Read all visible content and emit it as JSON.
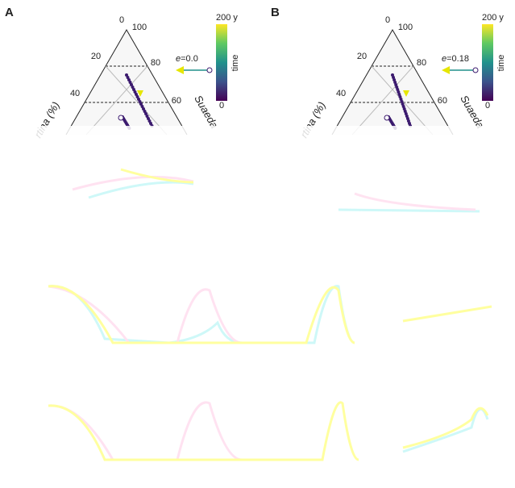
{
  "panels": [
    {
      "label": "A",
      "top_ticks": [
        "0",
        "100"
      ],
      "left_ticks": [
        "20",
        "40"
      ],
      "right_ticks": [
        "80",
        "60"
      ],
      "left_axis": "rtina (%)",
      "right_axis": "Suaeda",
      "e_symbol": "e",
      "e_value": "=0.0",
      "colorbar": {
        "top": "200 y",
        "title": "time",
        "bottom": "0"
      }
    },
    {
      "label": "B",
      "top_ticks": [
        "0",
        "100"
      ],
      "left_ticks": [
        "20",
        "40"
      ],
      "right_ticks": [
        "80",
        "60"
      ],
      "left_axis": "rtina (%)",
      "right_axis": "Suaeda",
      "e_symbol": "e",
      "e_value": "=0.18",
      "colorbar": {
        "top": "200 y",
        "title": "time",
        "bottom": "0"
      }
    }
  ]
}
